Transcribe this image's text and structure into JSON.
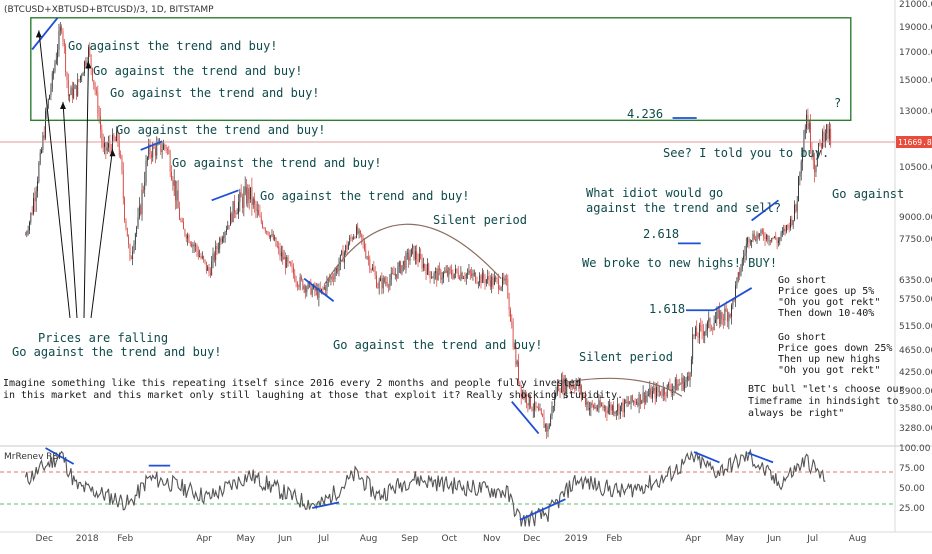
{
  "header": {
    "symbol_title": "(BTCUSD+XBTUSD+BTCUSD)/3, 1D, BITSTAMP"
  },
  "colors": {
    "up": "#26a69a",
    "down": "#ef5350",
    "candle_body": "#d43f3a",
    "box": "#2e7d32",
    "trendline": "#1e4fd6",
    "arc": "#8d6e63",
    "annotation": "#0f4a4a",
    "rsi_line": "#555555",
    "price_line": "#d67a7a",
    "price_tag": "#e74c3c"
  },
  "chart_data": [
    {
      "type": "candlestick",
      "title": "(BTCUSD+XBTUSD+BTCUSD)/3, 1D, BITSTAMP",
      "price_axis_ticks": [
        21000,
        19000,
        17000,
        15000,
        13000,
        11669.8,
        10500,
        9000,
        7750,
        6350,
        5750,
        5150,
        4650,
        4250,
        3900,
        3580,
        3280
      ],
      "price_axis_labels": [
        "21000.00",
        "19000.00",
        "17000.00",
        "15000.00",
        "13000.00",
        "11669.80",
        "10500.00",
        "9000.00",
        "7750.00",
        "6350.00",
        "5750.00",
        "5150.00",
        "4650.00",
        "4250.00",
        "3900.00",
        "3580.00",
        "3280.00"
      ],
      "current_price": 11669.8,
      "current_price_label": "11669.80",
      "x_labels": [
        "Dec",
        "2018",
        "Feb",
        "Apr",
        "May",
        "Jun",
        "Jul",
        "Aug",
        "Sep",
        "Oct",
        "Nov",
        "Dec",
        "2019",
        "Feb",
        "Apr",
        "May",
        "Jun",
        "Jul",
        "Aug"
      ],
      "ylim": [
        3000,
        21000
      ],
      "approx_close_path": [
        {
          "date": "2017-11-20",
          "close": 8000
        },
        {
          "date": "2017-12-01",
          "close": 10800
        },
        {
          "date": "2017-12-10",
          "close": 15000
        },
        {
          "date": "2017-12-17",
          "close": 19300
        },
        {
          "date": "2017-12-22",
          "close": 14000
        },
        {
          "date": "2017-12-28",
          "close": 14400
        },
        {
          "date": "2018-01-06",
          "close": 17100
        },
        {
          "date": "2018-01-12",
          "close": 13800
        },
        {
          "date": "2018-01-17",
          "close": 11200
        },
        {
          "date": "2018-01-28",
          "close": 11800
        },
        {
          "date": "2018-02-06",
          "close": 6900
        },
        {
          "date": "2018-02-20",
          "close": 11200
        },
        {
          "date": "2018-03-05",
          "close": 11500
        },
        {
          "date": "2018-03-18",
          "close": 8200
        },
        {
          "date": "2018-04-06",
          "close": 6600
        },
        {
          "date": "2018-04-25",
          "close": 9300
        },
        {
          "date": "2018-05-06",
          "close": 9700
        },
        {
          "date": "2018-05-28",
          "close": 7300
        },
        {
          "date": "2018-06-12",
          "close": 6300
        },
        {
          "date": "2018-06-28",
          "close": 5900
        },
        {
          "date": "2018-07-10",
          "close": 6700
        },
        {
          "date": "2018-07-25",
          "close": 8200
        },
        {
          "date": "2018-08-10",
          "close": 6200
        },
        {
          "date": "2018-08-20",
          "close": 6400
        },
        {
          "date": "2018-09-05",
          "close": 7300
        },
        {
          "date": "2018-09-20",
          "close": 6500
        },
        {
          "date": "2018-10-10",
          "close": 6600
        },
        {
          "date": "2018-11-01",
          "close": 6350
        },
        {
          "date": "2018-11-14",
          "close": 6200
        },
        {
          "date": "2018-11-20",
          "close": 4600
        },
        {
          "date": "2018-11-25",
          "close": 3900
        },
        {
          "date": "2018-12-15",
          "close": 3250
        },
        {
          "date": "2018-12-22",
          "close": 4000
        },
        {
          "date": "2019-01-05",
          "close": 4050
        },
        {
          "date": "2019-01-15",
          "close": 3600
        },
        {
          "date": "2019-02-08",
          "close": 3600
        },
        {
          "date": "2019-02-24",
          "close": 3800
        },
        {
          "date": "2019-03-10",
          "close": 3900
        },
        {
          "date": "2019-03-30",
          "close": 4100
        },
        {
          "date": "2019-04-02",
          "close": 4900
        },
        {
          "date": "2019-04-20",
          "close": 5300
        },
        {
          "date": "2019-05-01",
          "close": 5500
        },
        {
          "date": "2019-05-14",
          "close": 7900
        },
        {
          "date": "2019-05-25",
          "close": 8000
        },
        {
          "date": "2019-06-05",
          "close": 7700
        },
        {
          "date": "2019-06-18",
          "close": 9200
        },
        {
          "date": "2019-06-26",
          "close": 12900
        },
        {
          "date": "2019-07-02",
          "close": 10600
        },
        {
          "date": "2019-07-10",
          "close": 12300
        },
        {
          "date": "2019-07-14",
          "close": 11669.8
        }
      ]
    },
    {
      "type": "line",
      "title": "MrRenev RSI",
      "y_axis_labels": [
        "100.00",
        "75.00",
        "50.00",
        "25.00"
      ],
      "ylim": [
        0,
        100
      ],
      "levels": [
        70,
        30
      ],
      "approx_values": [
        {
          "date": "2017-11-20",
          "value": 60
        },
        {
          "date": "2017-12-17",
          "value": 92
        },
        {
          "date": "2017-12-28",
          "value": 52
        },
        {
          "date": "2018-01-12",
          "value": 45
        },
        {
          "date": "2018-02-06",
          "value": 30
        },
        {
          "date": "2018-02-20",
          "value": 62
        },
        {
          "date": "2018-03-05",
          "value": 58
        },
        {
          "date": "2018-04-06",
          "value": 38
        },
        {
          "date": "2018-05-06",
          "value": 66
        },
        {
          "date": "2018-06-12",
          "value": 35
        },
        {
          "date": "2018-06-28",
          "value": 28
        },
        {
          "date": "2018-07-25",
          "value": 68
        },
        {
          "date": "2018-08-10",
          "value": 40
        },
        {
          "date": "2018-09-05",
          "value": 62
        },
        {
          "date": "2018-10-10",
          "value": 52
        },
        {
          "date": "2018-11-14",
          "value": 45
        },
        {
          "date": "2018-11-25",
          "value": 8
        },
        {
          "date": "2018-12-15",
          "value": 18
        },
        {
          "date": "2019-01-05",
          "value": 60
        },
        {
          "date": "2019-02-08",
          "value": 45
        },
        {
          "date": "2019-03-10",
          "value": 60
        },
        {
          "date": "2019-04-02",
          "value": 88
        },
        {
          "date": "2019-04-20",
          "value": 70
        },
        {
          "date": "2019-05-14",
          "value": 90
        },
        {
          "date": "2019-06-05",
          "value": 55
        },
        {
          "date": "2019-06-26",
          "value": 85
        },
        {
          "date": "2019-07-10",
          "value": 60
        }
      ]
    }
  ],
  "annotations": {
    "go_against": "Go against the trend and buy!",
    "prices_falling_1": "Prices are falling",
    "prices_falling_2": "Go against the trend and buy!",
    "go_against_partial": "Go against",
    "silent_period": "Silent period",
    "fib_4236": "4.236",
    "fib_2618": "2.618",
    "fib_1618": "1.618",
    "question_mark": "?",
    "told_you": "See? I told you to buy.",
    "idiot_1": "What idiot would go",
    "idiot_2": "against the trend and sell?",
    "new_highs": "We broke to new highs! BUY!",
    "short1": [
      "Go short",
      "Price goes up 5%",
      "\"Oh you got rekt\"",
      "Then down 10-40%"
    ],
    "short2": [
      "Go short",
      "Price goes down 25%",
      "Then up new highs",
      "\"Oh you got rekt\""
    ],
    "btc_bull": [
      "BTC bull \"let's choose our",
      "Timeframe in hindsight to",
      "always be right\""
    ],
    "imagine_1": "Imagine something like this repeating itself since 2016 every 2 months and people fully invested",
    "imagine_2": "in this market and this market only still laughing at those that exploit it? Really shocking stupidity."
  }
}
